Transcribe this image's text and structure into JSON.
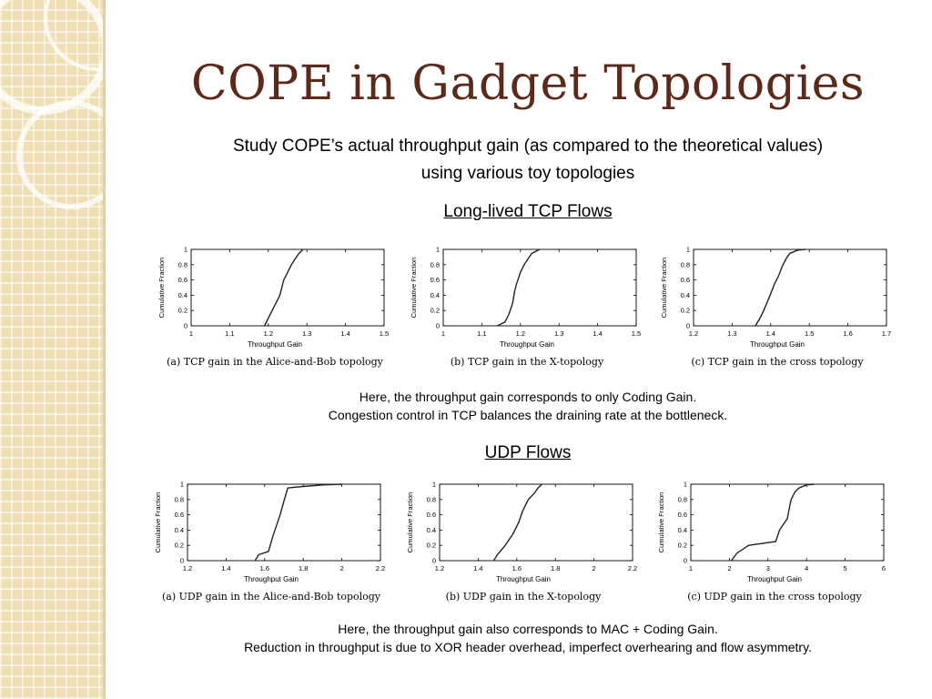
{
  "slide": {
    "title": "COPE in Gadget Topologies",
    "subtitle_line1": "Study COPE’s actual throughput gain (as compared to the theoretical values)",
    "subtitle_line2": "using various toy topologies",
    "tcp_heading": "Long-lived TCP Flows",
    "tcp_note_line1": "Here, the throughput gain corresponds to only Coding Gain.",
    "tcp_note_line2": "Congestion control in TCP balances the draining rate at the bottleneck.",
    "udp_heading": "UDP Flows",
    "udp_note_line1": "Here, the throughput gain also corresponds to MAC + Coding Gain.",
    "udp_note_line2": "Reduction in throughput is due to XOR header overhead, imperfect overhearing and flow asymmetry."
  },
  "chart_data": [
    {
      "type": "line",
      "caption": "(a) TCP gain in the Alice-and-Bob topology",
      "xlabel": "Throughput Gain",
      "ylabel": "Cumulative Fraction",
      "xlim": [
        1,
        1.5
      ],
      "ylim": [
        0,
        1
      ],
      "xticks": [
        "1",
        "1.1",
        "1.2",
        "1.3",
        "1.4",
        "1.5"
      ],
      "yticks": [
        "0",
        "0.2",
        "0.4",
        "0.6",
        "0.8",
        "1"
      ],
      "x": [
        1.19,
        1.2,
        1.21,
        1.22,
        1.23,
        1.235,
        1.24,
        1.25,
        1.26,
        1.27,
        1.28,
        1.29
      ],
      "y": [
        0,
        0.1,
        0.2,
        0.3,
        0.4,
        0.5,
        0.6,
        0.7,
        0.8,
        0.88,
        0.95,
        1
      ]
    },
    {
      "type": "line",
      "caption": "(b) TCP gain in the X-topology",
      "xlabel": "Throughput Gain",
      "ylabel": "Cumulative Fraction",
      "xlim": [
        1,
        1.5
      ],
      "ylim": [
        0,
        1
      ],
      "xticks": [
        "1",
        "1.1",
        "1.2",
        "1.3",
        "1.4",
        "1.5"
      ],
      "yticks": [
        "0",
        "0.2",
        "0.4",
        "0.6",
        "0.8",
        "1"
      ],
      "x": [
        1.14,
        1.16,
        1.17,
        1.18,
        1.185,
        1.19,
        1.2,
        1.21,
        1.22,
        1.23,
        1.25
      ],
      "y": [
        0,
        0.05,
        0.15,
        0.3,
        0.45,
        0.55,
        0.7,
        0.8,
        0.88,
        0.95,
        1
      ]
    },
    {
      "type": "line",
      "caption": "(c) TCP gain in the cross topology",
      "xlabel": "Throughput Gain",
      "ylabel": "Cumulative Fraction",
      "xlim": [
        1.2,
        1.7
      ],
      "ylim": [
        0,
        1
      ],
      "xticks": [
        "1.2",
        "1.3",
        "1.4",
        "1.5",
        "1.6",
        "1.7"
      ],
      "yticks": [
        "0",
        "0.2",
        "0.4",
        "0.6",
        "0.8",
        "1"
      ],
      "x": [
        1.36,
        1.37,
        1.38,
        1.39,
        1.4,
        1.41,
        1.42,
        1.43,
        1.44,
        1.45,
        1.47,
        1.49
      ],
      "y": [
        0,
        0.08,
        0.18,
        0.3,
        0.42,
        0.55,
        0.65,
        0.78,
        0.88,
        0.95,
        0.99,
        1
      ]
    },
    {
      "type": "line",
      "caption": "(a) UDP gain in the Alice-and-Bob topology",
      "xlabel": "Throughput Gain",
      "ylabel": "Cumulative Fraction",
      "xlim": [
        1.2,
        2.2
      ],
      "ylim": [
        0,
        1
      ],
      "xticks": [
        "1.2",
        "1.4",
        "1.6",
        "1.8",
        "2",
        "2.2"
      ],
      "yticks": [
        "0",
        "0.2",
        "0.4",
        "0.6",
        "0.8",
        "1"
      ],
      "x": [
        1.55,
        1.57,
        1.62,
        1.64,
        1.66,
        1.68,
        1.7,
        1.72,
        1.75,
        1.8,
        1.9,
        2.0
      ],
      "y": [
        0,
        0.08,
        0.12,
        0.3,
        0.45,
        0.6,
        0.78,
        0.95,
        0.96,
        0.97,
        0.99,
        1
      ]
    },
    {
      "type": "line",
      "caption": "(b) UDP gain in the X-topology",
      "xlabel": "Throughput Gain",
      "ylabel": "Cumulative Fraction",
      "xlim": [
        1.2,
        2.2
      ],
      "ylim": [
        0,
        1
      ],
      "xticks": [
        "1.2",
        "1.4",
        "1.6",
        "1.8",
        "2",
        "2.2"
      ],
      "yticks": [
        "0",
        "0.2",
        "0.4",
        "0.6",
        "0.8",
        "1"
      ],
      "x": [
        1.48,
        1.5,
        1.54,
        1.58,
        1.61,
        1.63,
        1.66,
        1.69,
        1.71,
        1.73
      ],
      "y": [
        0,
        0.08,
        0.2,
        0.35,
        0.5,
        0.65,
        0.8,
        0.88,
        0.95,
        1
      ]
    },
    {
      "type": "line",
      "caption": "(c) UDP gain in the cross topology",
      "xlabel": "Throughput Gain",
      "ylabel": "Cumulative Fraction",
      "xlim": [
        1,
        6
      ],
      "ylim": [
        0,
        1
      ],
      "xticks": [
        "1",
        "2",
        "3",
        "4",
        "5",
        "6"
      ],
      "yticks": [
        "0",
        "0.2",
        "0.4",
        "0.6",
        "0.8",
        "1"
      ],
      "x": [
        2.05,
        2.2,
        2.5,
        3.2,
        3.3,
        3.5,
        3.6,
        3.7,
        3.8,
        4.0,
        4.2
      ],
      "y": [
        0,
        0.1,
        0.2,
        0.25,
        0.4,
        0.55,
        0.8,
        0.9,
        0.95,
        0.99,
        1
      ]
    }
  ]
}
